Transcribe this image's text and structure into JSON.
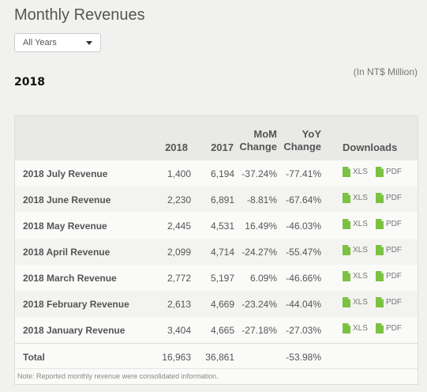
{
  "page": {
    "title": "Monthly Revenues",
    "year_select": "All Years",
    "unit_note": "(In NT$ Million)",
    "year_heading": "2018"
  },
  "table": {
    "headers": {
      "col2018": "2018",
      "col2017": "2017",
      "mom_1": "MoM",
      "mom_2": "Change",
      "yoy_1": "YoY",
      "yoy_2": "Change",
      "downloads": "Downloads"
    },
    "rows": [
      {
        "label": "2018 July Revenue",
        "v2018": "1,400",
        "v2017": "6,194",
        "mom": "-37.24%",
        "yoy": "-77.41%",
        "xls": "XLS",
        "pdf": "PDF"
      },
      {
        "label": "2018 June Revenue",
        "v2018": "2,230",
        "v2017": "6,891",
        "mom": "-8.81%",
        "yoy": "-67.64%",
        "xls": "XLS",
        "pdf": "PDF"
      },
      {
        "label": "2018 May Revenue",
        "v2018": "2,445",
        "v2017": "4,531",
        "mom": "16.49%",
        "yoy": "-46.03%",
        "xls": "XLS",
        "pdf": "PDF"
      },
      {
        "label": "2018 April Revenue",
        "v2018": "2,099",
        "v2017": "4,714",
        "mom": "-24.27%",
        "yoy": "-55.47%",
        "xls": "XLS",
        "pdf": "PDF"
      },
      {
        "label": "2018 March Revenue",
        "v2018": "2,772",
        "v2017": "5,197",
        "mom": "6.09%",
        "yoy": "-46.66%",
        "xls": "XLS",
        "pdf": "PDF"
      },
      {
        "label": "2018 February Revenue",
        "v2018": "2,613",
        "v2017": "4,669",
        "mom": "-23.24%",
        "yoy": "-44.04%",
        "xls": "XLS",
        "pdf": "PDF"
      },
      {
        "label": "2018 January Revenue",
        "v2018": "3,404",
        "v2017": "4,665",
        "mom": "-27.18%",
        "yoy": "-27.03%",
        "xls": "XLS",
        "pdf": "PDF"
      }
    ],
    "total": {
      "label": "Total",
      "v2018": "16,963",
      "v2017": "36,861",
      "yoy": "-53.98%"
    },
    "footnote": "Note: Reported monthly revenue were consolidated information."
  },
  "colors": {
    "background": "#f1f1ef",
    "header_bg": "#e9e9e7",
    "file_icon": "#7cc242"
  }
}
